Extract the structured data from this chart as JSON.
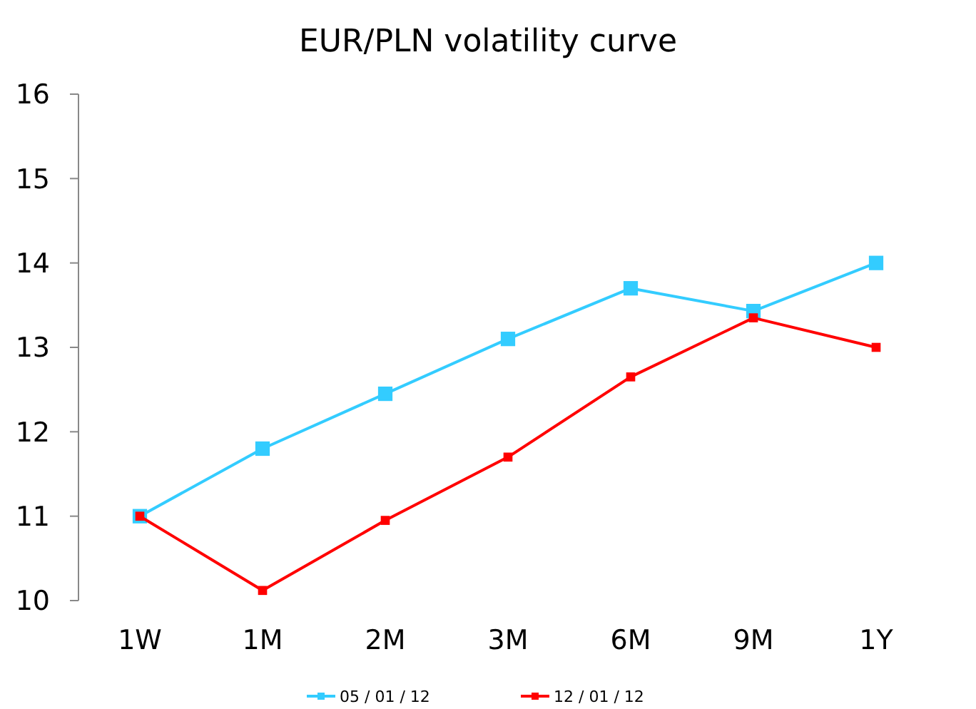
{
  "chart_data": {
    "type": "line",
    "title": "EUR/PLN volatility curve",
    "categories": [
      "1W",
      "1M",
      "2M",
      "3M",
      "6M",
      "9M",
      "1Y"
    ],
    "series": [
      {
        "name": "05 / 01 / 12",
        "color": "#33ccff",
        "values": [
          11,
          11.8,
          12.45,
          13.1,
          13.7,
          13.43,
          14.0
        ]
      },
      {
        "name": "12 / 01 / 12",
        "color": "#ff0000",
        "values": [
          11,
          10.12,
          10.95,
          11.7,
          12.65,
          13.35,
          13.0
        ]
      }
    ],
    "ylim": [
      10,
      16
    ],
    "yticks": [
      10,
      11,
      12,
      13,
      14,
      15,
      16
    ],
    "grid": false,
    "legend": "bottom",
    "marker": "square"
  }
}
